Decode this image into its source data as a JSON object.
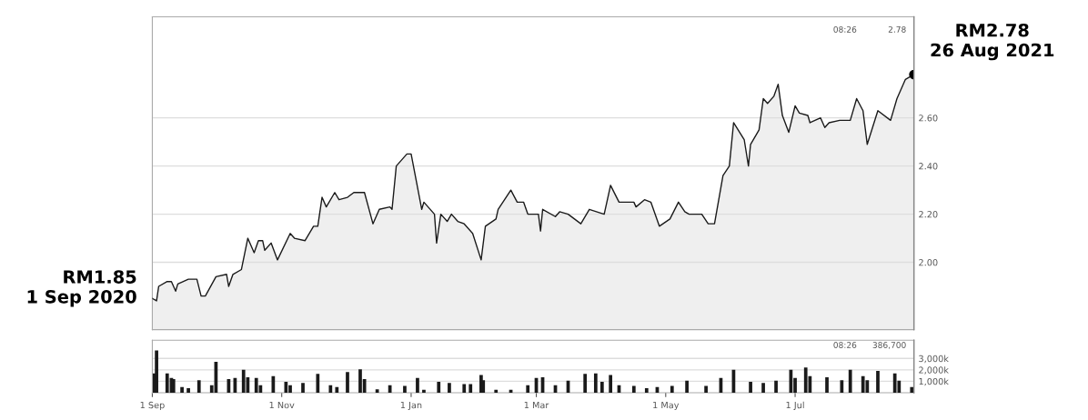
{
  "chart_data": [
    {
      "type": "area",
      "x": [
        "2020-09-01",
        "2020-09-03",
        "2020-09-04",
        "2020-09-08",
        "2020-09-10",
        "2020-09-12",
        "2020-09-13",
        "2020-09-18",
        "2020-09-22",
        "2020-09-24",
        "2020-09-26",
        "2020-10-01",
        "2020-10-06",
        "2020-10-07",
        "2020-10-09",
        "2020-10-13",
        "2020-10-16",
        "2020-10-19",
        "2020-10-21",
        "2020-10-23",
        "2020-10-24",
        "2020-10-27",
        "2020-10-30",
        "2020-11-05",
        "2020-11-07",
        "2020-11-12",
        "2020-11-16",
        "2020-11-18",
        "2020-11-20",
        "2020-11-22",
        "2020-11-26",
        "2020-11-28",
        "2020-12-02",
        "2020-12-05",
        "2020-12-10",
        "2020-12-14",
        "2020-12-17",
        "2020-12-22",
        "2020-12-23",
        "2020-12-25",
        "2020-12-30",
        "2021-01-01",
        "2021-01-06",
        "2021-01-07",
        "2021-01-12",
        "2021-01-13",
        "2021-01-15",
        "2021-01-18",
        "2021-01-20",
        "2021-01-23",
        "2021-01-26",
        "2021-01-30",
        "2021-02-03",
        "2021-02-05",
        "2021-02-10",
        "2021-02-11",
        "2021-02-17",
        "2021-02-20",
        "2021-02-23",
        "2021-02-25",
        "2021-03-02",
        "2021-03-03",
        "2021-03-04",
        "2021-03-10",
        "2021-03-12",
        "2021-03-16",
        "2021-03-22",
        "2021-03-26",
        "2021-04-02",
        "2021-04-05",
        "2021-04-09",
        "2021-04-16",
        "2021-04-17",
        "2021-04-21",
        "2021-04-24",
        "2021-04-28",
        "2021-05-03",
        "2021-05-07",
        "2021-05-10",
        "2021-05-12",
        "2021-05-18",
        "2021-05-21",
        "2021-05-24",
        "2021-05-28",
        "2021-05-31",
        "2021-06-02",
        "2021-06-07",
        "2021-06-09",
        "2021-06-10",
        "2021-06-14",
        "2021-06-16",
        "2021-06-18",
        "2021-06-21",
        "2021-06-23",
        "2021-06-25",
        "2021-06-28",
        "2021-07-01",
        "2021-07-03",
        "2021-07-07",
        "2021-07-08",
        "2021-07-13",
        "2021-07-15",
        "2021-07-17",
        "2021-07-22",
        "2021-07-27",
        "2021-07-30",
        "2021-08-02",
        "2021-08-04",
        "2021-08-09",
        "2021-08-15",
        "2021-08-18",
        "2021-08-22",
        "2021-08-26"
      ],
      "series": [
        {
          "color": "#1a1a1a",
          "values": [
            1.85,
            1.84,
            1.9,
            1.92,
            1.92,
            1.88,
            1.91,
            1.93,
            1.93,
            1.86,
            1.86,
            1.94,
            1.95,
            1.9,
            1.95,
            1.97,
            2.1,
            2.04,
            2.09,
            2.09,
            2.05,
            2.08,
            2.01,
            2.12,
            2.1,
            2.09,
            2.15,
            2.15,
            2.27,
            2.23,
            2.29,
            2.26,
            2.27,
            2.29,
            2.29,
            2.16,
            2.22,
            2.23,
            2.22,
            2.4,
            2.45,
            2.45,
            2.22,
            2.25,
            2.2,
            2.08,
            2.2,
            2.17,
            2.2,
            2.17,
            2.16,
            2.12,
            2.01,
            2.15,
            2.18,
            2.22,
            2.3,
            2.25,
            2.25,
            2.2,
            2.2,
            2.13,
            2.22,
            2.19,
            2.21,
            2.2,
            2.16,
            2.22,
            2.2,
            2.32,
            2.25,
            2.25,
            2.23,
            2.26,
            2.25,
            2.15,
            2.18,
            2.25,
            2.21,
            2.2,
            2.2,
            2.16,
            2.16,
            2.36,
            2.4,
            2.58,
            2.51,
            2.4,
            2.49,
            2.55,
            2.68,
            2.66,
            2.69,
            2.74,
            2.61,
            2.54,
            2.65,
            2.62,
            2.61,
            2.58,
            2.6,
            2.56,
            2.58,
            2.59,
            2.59,
            2.68,
            2.63,
            2.49,
            2.63,
            2.59,
            2.68,
            2.76,
            2.78
          ]
        },
        {
          "type": "scatter",
          "x": [
            "2021-08-26"
          ],
          "values": [
            2.78
          ],
          "color": "#000000"
        }
      ],
      "xlim": [
        "2020-09-01",
        "2021-08-26"
      ],
      "ylim": [
        1.72,
        3.02
      ],
      "yticks": [
        {
          "value": 2.0,
          "label": "2.00"
        },
        {
          "value": 2.2,
          "label": "2.20"
        },
        {
          "value": 2.4,
          "label": "2.40"
        },
        {
          "value": 2.6,
          "label": "2.60"
        }
      ],
      "tick_labels": "y",
      "grid": "y",
      "ref_lines": [
        {
          "axis": "x",
          "value": "2021-08-26",
          "color": "#888888"
        }
      ],
      "annotations": [
        {
          "text": "RM1.85\n1 Sep 2020",
          "x": "2020-09-01",
          "y": 1.85
        },
        {
          "text": "RM2.78\n26 Aug 2021",
          "x": "2021-08-26",
          "y": 2.78
        },
        "08:26",
        "2.78"
      ]
    },
    {
      "type": "bar",
      "x": [
        "2020-09-02",
        "2020-09-03",
        "2020-09-08",
        "2020-09-10",
        "2020-09-11",
        "2020-09-15",
        "2020-09-18",
        "2020-09-23",
        "2020-09-29",
        "2020-10-01",
        "2020-10-07",
        "2020-10-10",
        "2020-10-14",
        "2020-10-16",
        "2020-10-20",
        "2020-10-22",
        "2020-10-28",
        "2020-11-03",
        "2020-11-05",
        "2020-11-11",
        "2020-11-18",
        "2020-11-24",
        "2020-11-27",
        "2020-12-02",
        "2020-12-08",
        "2020-12-10",
        "2020-12-16",
        "2020-12-22",
        "2020-12-29",
        "2021-01-04",
        "2021-01-07",
        "2021-01-14",
        "2021-01-19",
        "2021-01-26",
        "2021-01-29",
        "2021-02-03",
        "2021-02-04",
        "2021-02-10",
        "2021-02-17",
        "2021-02-25",
        "2021-03-01",
        "2021-03-04",
        "2021-03-10",
        "2021-03-16",
        "2021-03-24",
        "2021-03-29",
        "2021-04-01",
        "2021-04-05",
        "2021-04-09",
        "2021-04-16",
        "2021-04-22",
        "2021-04-27",
        "2021-05-04",
        "2021-05-11",
        "2021-05-20",
        "2021-05-27",
        "2021-06-02",
        "2021-06-10",
        "2021-06-16",
        "2021-06-22",
        "2021-06-29",
        "2021-07-01",
        "2021-07-06",
        "2021-07-08",
        "2021-07-16",
        "2021-07-23",
        "2021-07-27",
        "2021-08-02",
        "2021-08-04",
        "2021-08-09",
        "2021-08-17",
        "2021-08-19",
        "2021-08-25"
      ],
      "values": [
        1700,
        3700,
        1700,
        1300,
        1200,
        500,
        400,
        1100,
        650,
        2700,
        1200,
        1300,
        2000,
        1350,
        1300,
        650,
        1450,
        950,
        650,
        850,
        1650,
        650,
        500,
        1800,
        2050,
        1200,
        300,
        650,
        600,
        1300,
        250,
        950,
        850,
        750,
        750,
        1550,
        1100,
        250,
        250,
        650,
        1300,
        1350,
        650,
        1050,
        1650,
        1700,
        950,
        1550,
        650,
        600,
        400,
        500,
        600,
        1050,
        600,
        1300,
        2000,
        950,
        850,
        1050,
        2000,
        1300,
        2200,
        1450,
        1350,
        1100,
        2000,
        1450,
        1100,
        1900,
        1700,
        1050,
        500
      ],
      "color": "#1a1a1a",
      "xlim": [
        "2020-09-01",
        "2021-08-26"
      ],
      "xticks": [
        {
          "value": "2020-09-01",
          "label": "1 Sep"
        },
        {
          "value": "2020-11-01",
          "label": "1 Nov"
        },
        {
          "value": "2021-01-01",
          "label": "1 Jan"
        },
        {
          "value": "2021-03-01",
          "label": "1 Mar"
        },
        {
          "value": "2021-05-01",
          "label": "1 May"
        },
        {
          "value": "2021-07-01",
          "label": "1 Jul"
        }
      ],
      "ylim": [
        0,
        4600
      ],
      "yticks": [
        {
          "value": 1000,
          "label": "1,000k"
        },
        {
          "value": 2000,
          "label": "2,000k"
        },
        {
          "value": 3000,
          "label": "3,000k"
        }
      ],
      "grid": "y",
      "ref_lines": [
        {
          "axis": "x",
          "value": "2021-08-26",
          "color": "#888888"
        }
      ],
      "annotations": [
        "08:26",
        "386,700"
      ]
    }
  ]
}
